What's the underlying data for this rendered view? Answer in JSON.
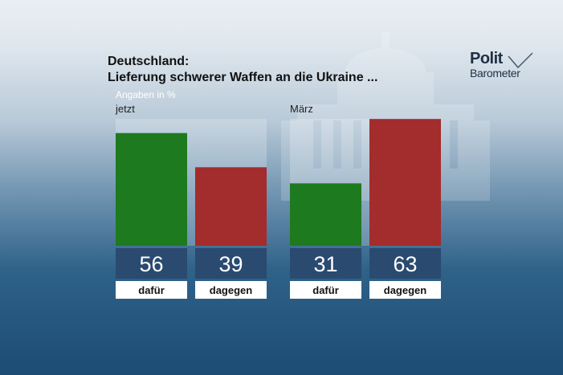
{
  "header": {
    "title_line1": "Deutschland:",
    "title_line2": "Lieferung schwerer Waffen an die Ukraine ...",
    "subtitle": "Angaben in %"
  },
  "logo": {
    "word1": "Polit",
    "word2": "Barometer"
  },
  "colors": {
    "dafuer": "#1e7a1e",
    "dagegen": "#a32c2c",
    "value_box": "#2a4a70",
    "label_box": "#ffffff"
  },
  "chart_data": [
    {
      "type": "bar",
      "panel_label": "jetzt",
      "categories": [
        "dafür",
        "dagegen"
      ],
      "values": [
        56,
        39
      ],
      "ylim": [
        0,
        100
      ]
    },
    {
      "type": "bar",
      "panel_label": "März",
      "categories": [
        "dafür",
        "dagegen"
      ],
      "values": [
        31,
        63
      ],
      "ylim": [
        0,
        100
      ]
    }
  ]
}
